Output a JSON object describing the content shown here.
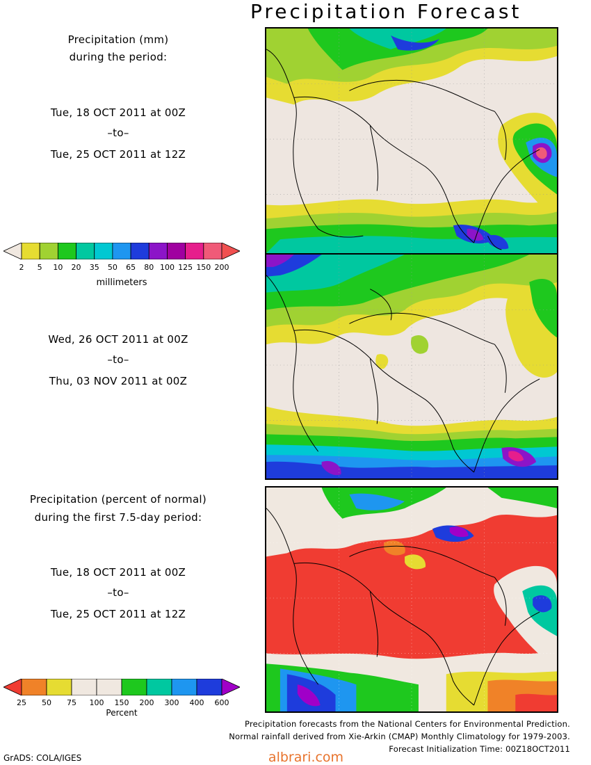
{
  "title": "Precipitation Forecast",
  "section1": {
    "heading_line1": "Precipitation (mm)",
    "heading_line2": "during the period:"
  },
  "period1": {
    "start": "Tue, 18 OCT 2011 at 00Z",
    "sep": "–to–",
    "end": "Tue, 25 OCT 2011 at 12Z"
  },
  "period2": {
    "start": "Wed, 26 OCT 2011 at 00Z",
    "sep": "–to–",
    "end": "Thu, 03 NOV 2011 at 00Z"
  },
  "mm_scale": {
    "labels": [
      "2",
      "5",
      "10",
      "20",
      "35",
      "50",
      "65",
      "80",
      "100",
      "125",
      "150",
      "200"
    ],
    "colors": [
      "#f0e8e0",
      "#e6dc32",
      "#a0d232",
      "#1ec81e",
      "#00c8a0",
      "#00c8d2",
      "#1e96f0",
      "#1e3cdc",
      "#8c14c8",
      "#a000a0",
      "#e61e8c",
      "#f05a78",
      "#f05050"
    ],
    "unit": "millimeters"
  },
  "section2": {
    "heading_line1": "Precipitation (percent of normal)",
    "heading_line2": "during the first 7.5-day period:"
  },
  "period3": {
    "start": "Tue, 18 OCT 2011 at 00Z",
    "sep": "–to–",
    "end": "Tue, 25 OCT 2011 at 12Z"
  },
  "pct_scale": {
    "labels": [
      "25",
      "50",
      "75",
      "100",
      "150",
      "200",
      "300",
      "400",
      "600"
    ],
    "colors": [
      "#f03c32",
      "#f08228",
      "#e6dc32",
      "#f0e8e0",
      "#f0e8e0",
      "#1ec81e",
      "#00c8a0",
      "#1e96f0",
      "#1e3cdc",
      "#a000c8"
    ],
    "unit": "Percent"
  },
  "footer": {
    "line1": "Precipitation forecasts from the National Centers for Environmental Prediction.",
    "line2": "Normal rainfall derived from Xie-Arkin (CMAP) Monthly Climatology for 1979-2003.",
    "line3": "Forecast Initialization Time: 00Z18OCT2011"
  },
  "credit": "GrADS: COLA/IGES",
  "watermark": "albrari.com"
}
